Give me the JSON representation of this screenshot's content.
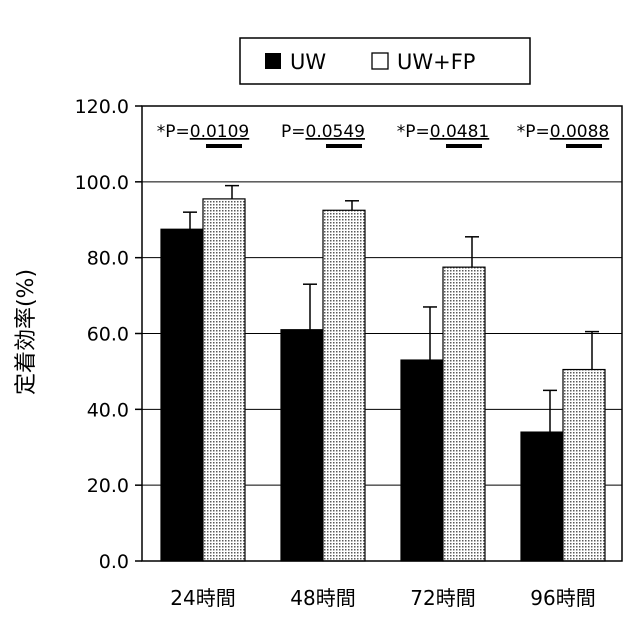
{
  "chart_data": {
    "type": "bar",
    "ylabel": "定着効率(%)",
    "ylim": [
      0,
      120
    ],
    "yticks": [
      "0.0",
      "20.0",
      "40.0",
      "60.0",
      "80.0",
      "100.0",
      "120.0"
    ],
    "grid": true,
    "legend_position": "top-center",
    "categories": [
      "24時間",
      "48時間",
      "72時間",
      "96時間"
    ],
    "series": [
      {
        "name": "UW",
        "values": [
          87.5,
          61.0,
          53.0,
          34.0
        ],
        "errors": [
          4.5,
          12.0,
          14.0,
          11.0
        ],
        "color": "#000000"
      },
      {
        "name": "UW+FP",
        "values": [
          95.5,
          92.5,
          77.5,
          50.5
        ],
        "errors": [
          3.5,
          2.5,
          8.0,
          10.0
        ],
        "color": "#c8c8c8"
      }
    ],
    "annotations": [
      {
        "prefix": "*P=",
        "value": "0.0109"
      },
      {
        "prefix": "P=",
        "value": "0.0549"
      },
      {
        "prefix": "*P=",
        "value": "0.0481"
      },
      {
        "prefix": "*P=",
        "value": "0.0088"
      }
    ]
  }
}
